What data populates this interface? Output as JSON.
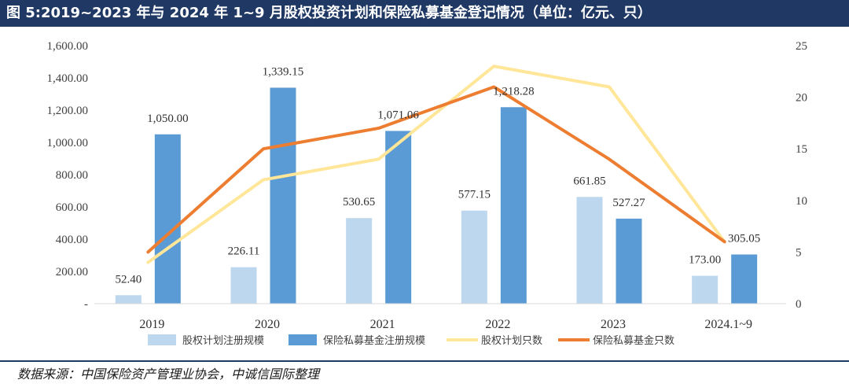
{
  "title": "图 5:2019~2023 年与 2024 年 1~9 月股权投资计划和保险私募基金登记情况（单位：亿元、只）",
  "source": "数据来源：中国保险资产管理业协会，中诚信国际整理",
  "colors": {
    "equity_scale": "#bdd7ee",
    "pe_scale": "#5b9bd5",
    "equity_count": "#ffe699",
    "pe_count": "#ed7d31"
  },
  "chart_data": {
    "type": "bar",
    "title": "2019~2023 年与 2024 年 1~9 月股权投资计划和保险私募基金登记情况",
    "categories": [
      "2019",
      "2020",
      "2021",
      "2022",
      "2023",
      "2024.1~9"
    ],
    "y_left": {
      "range": [
        0,
        1600
      ],
      "ticks": [
        "-",
        "200.00",
        "400.00",
        "600.00",
        "800.00",
        "1,000.00",
        "1,200.00",
        "1,400.00",
        "1,600.00"
      ]
    },
    "y_right": {
      "range": [
        0,
        25
      ],
      "ticks": [
        "0",
        "5",
        "10",
        "15",
        "20",
        "25"
      ]
    },
    "series": [
      {
        "name": "股权计划注册规模",
        "type": "bar",
        "axis": "left",
        "values": [
          52.4,
          226.11,
          530.65,
          577.15,
          661.85,
          173.0
        ],
        "labels": [
          "52.40",
          "226.11",
          "530.65",
          "577.15",
          "661.85",
          "173.00"
        ]
      },
      {
        "name": "保险私募基金注册规模",
        "type": "bar",
        "axis": "left",
        "values": [
          1050.0,
          1339.15,
          1071.06,
          1218.28,
          527.27,
          305.05
        ],
        "labels": [
          "1,050.00",
          "1,339.15",
          "1,071.06",
          "1,218.28",
          "527.27",
          "305.05"
        ]
      },
      {
        "name": "股权计划只数",
        "type": "line",
        "axis": "right",
        "values": [
          4,
          12,
          14,
          23,
          21,
          6
        ]
      },
      {
        "name": "保险私募基金只数",
        "type": "line",
        "axis": "right",
        "values": [
          5,
          15,
          17,
          21,
          14,
          6
        ]
      }
    ],
    "legend": "bottom"
  }
}
